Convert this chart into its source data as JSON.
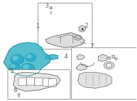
{
  "bg_color": "#ffffff",
  "border_color": "#cccccc",
  "teal_color": "#3ab5c6",
  "teal_dark": "#2090a0",
  "teal_mid": "#2aaacb",
  "teal_light": "#80d8e8",
  "gray_color": "#b0b0b0",
  "dark_gray": "#555555",
  "light_gray": "#d0d0d0",
  "font_size": 6,
  "line_color": "#888888"
}
